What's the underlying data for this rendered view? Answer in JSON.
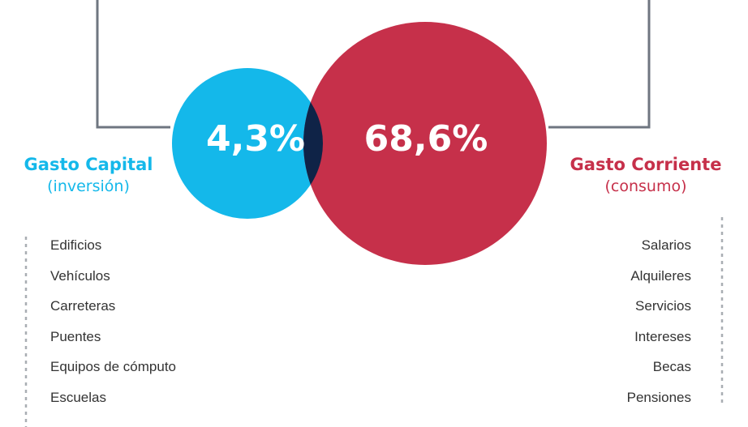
{
  "capital": {
    "title": "Gasto Capital",
    "subtitle": "(inversión)",
    "percent": "4,3%",
    "color": "#14b8ea",
    "items": [
      "Edificios",
      "Vehículos",
      "Carreteras",
      "Puentes",
      "Equipos de cómputo",
      "Escuelas"
    ]
  },
  "corriente": {
    "title": "Gasto Corriente",
    "subtitle": "(consumo)",
    "percent": "68,6%",
    "color": "#c6304a",
    "items": [
      "Salarios",
      "Alquileres",
      "Servicios",
      "Intereses",
      "Becas",
      "Pensiones"
    ]
  },
  "overlap_color": "#0f2347",
  "connector_color": "#6f7680"
}
